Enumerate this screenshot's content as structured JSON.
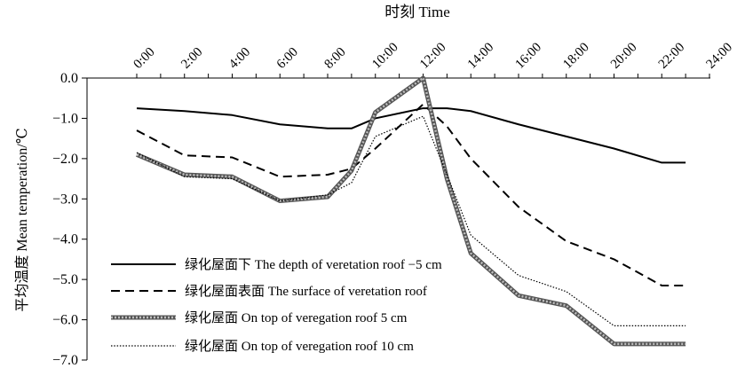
{
  "chart_data": {
    "type": "line",
    "title": "时刻  Time",
    "xlabel": "时刻  Time",
    "ylabel": "平均温度  Mean temperation/℃",
    "x_tick_labels": [
      "0:00",
      "2:00",
      "4:00",
      "6:00",
      "8:00",
      "10:00",
      "12:00",
      "14:00",
      "16:00",
      "18:00",
      "20:00",
      "22:00",
      "24:00"
    ],
    "y_tick_labels": [
      "0.0",
      "−1.0",
      "−2.0",
      "−3.0",
      "−4.0",
      "−5.0",
      "−6.0",
      "−7.0"
    ],
    "ylim": [
      -7,
      0
    ],
    "xlim": [
      -1,
      24
    ],
    "grid": false,
    "legend_position": "bottom-left",
    "series": [
      {
        "name": "绿化屋面下  The depth of veretation roof −5 cm",
        "style": "solid",
        "color": "#000000",
        "x": [
          0,
          2,
          4,
          6,
          8,
          9,
          10,
          12,
          13,
          14,
          16,
          18,
          20,
          22,
          23
        ],
        "y": [
          -0.75,
          -0.82,
          -0.92,
          -1.15,
          -1.25,
          -1.25,
          -1.0,
          -0.75,
          -0.75,
          -0.82,
          -1.15,
          -1.45,
          -1.75,
          -2.1,
          -2.1
        ]
      },
      {
        "name": "绿化屋面表面  The surface of veretation roof",
        "style": "dashed",
        "color": "#000000",
        "x": [
          0,
          2,
          4,
          6,
          8,
          9,
          10,
          12,
          13,
          14,
          16,
          18,
          20,
          22,
          23
        ],
        "y": [
          -1.3,
          -1.92,
          -1.97,
          -2.45,
          -2.4,
          -2.25,
          -1.75,
          -0.65,
          -1.2,
          -2.0,
          -3.2,
          -4.05,
          -4.5,
          -5.15,
          -5.15
        ]
      },
      {
        "name": "绿化屋面  On top of veregation roof 5 cm",
        "style": "thick-gray",
        "color": "#7f7f7f",
        "x": [
          0,
          2,
          4,
          6,
          8,
          9,
          10,
          12,
          13,
          14,
          16,
          18,
          20,
          22,
          23
        ],
        "y": [
          -1.9,
          -2.4,
          -2.45,
          -3.05,
          -2.95,
          -2.3,
          -0.85,
          0.0,
          -2.5,
          -4.35,
          -5.4,
          -5.65,
          -6.6,
          -6.6,
          -6.6
        ]
      },
      {
        "name": "绿化屋面  On top of veregation roof 10 cm",
        "style": "dotted",
        "color": "#000000",
        "x": [
          0,
          2,
          4,
          6,
          8,
          9,
          10,
          12,
          13,
          14,
          16,
          18,
          20,
          22,
          23
        ],
        "y": [
          -1.85,
          -2.45,
          -2.5,
          -3.05,
          -2.9,
          -2.6,
          -1.45,
          -0.95,
          -2.4,
          -3.9,
          -4.9,
          -5.3,
          -6.15,
          -6.15,
          -6.15
        ]
      }
    ]
  }
}
